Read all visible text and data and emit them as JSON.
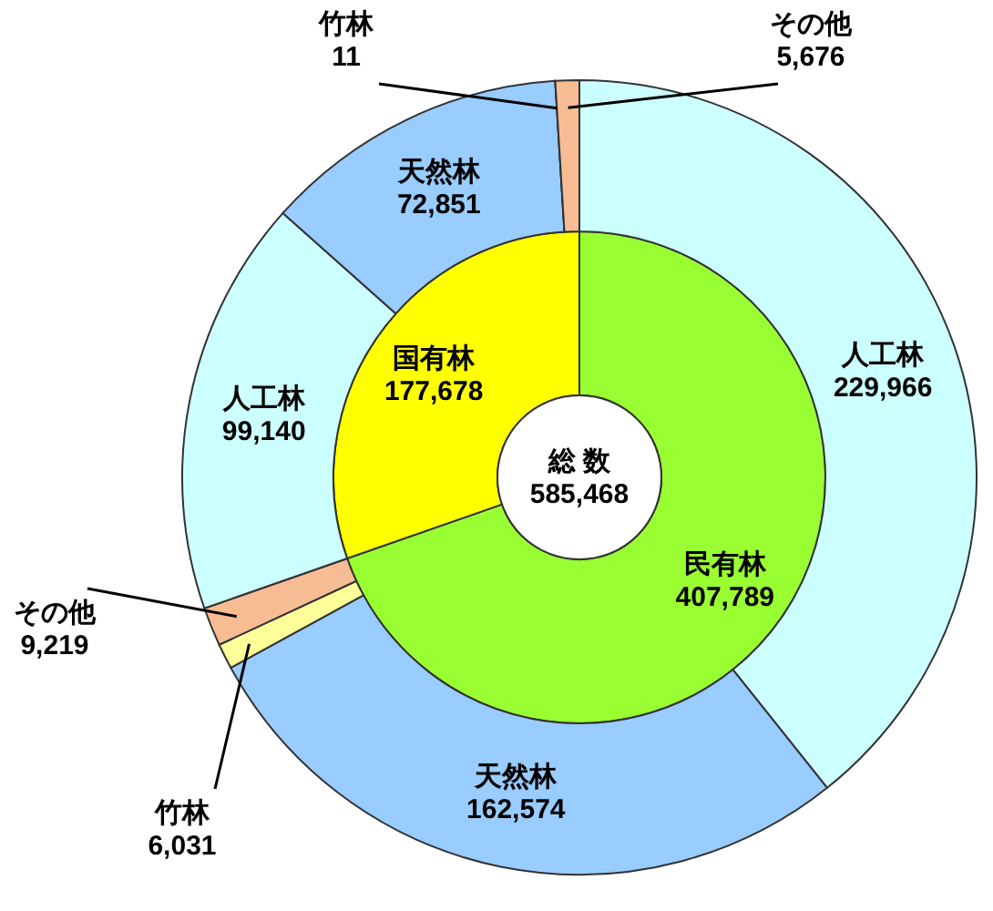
{
  "chart_data": [
    {
      "type": "donut",
      "categories": [
        "民有林",
        "国有林"
      ],
      "values": [
        407789,
        177678
      ],
      "colors": [
        "#99ff33",
        "#ffff00"
      ],
      "value_labels": [
        "407,789",
        "177,678"
      ],
      "annotations": [
        "総 数",
        "585,468"
      ]
    },
    {
      "type": "donut",
      "categories": [
        "人工林",
        "天然林",
        "竹林",
        "その他",
        "人工林",
        "天然林",
        "竹林",
        "その他"
      ],
      "values": [
        229966,
        162574,
        6031,
        9219,
        99140,
        72851,
        11,
        5676
      ],
      "colors": [
        "#ccffff",
        "#99ccff",
        "#ffff99",
        "#f8bc94",
        "#ccffff",
        "#99ccff",
        "#ffff99",
        "#f8bc94"
      ],
      "value_labels": [
        "229,966",
        "162,574",
        "6,031",
        "9,219",
        "99,140",
        "72,851",
        "11",
        "5,676"
      ]
    }
  ]
}
